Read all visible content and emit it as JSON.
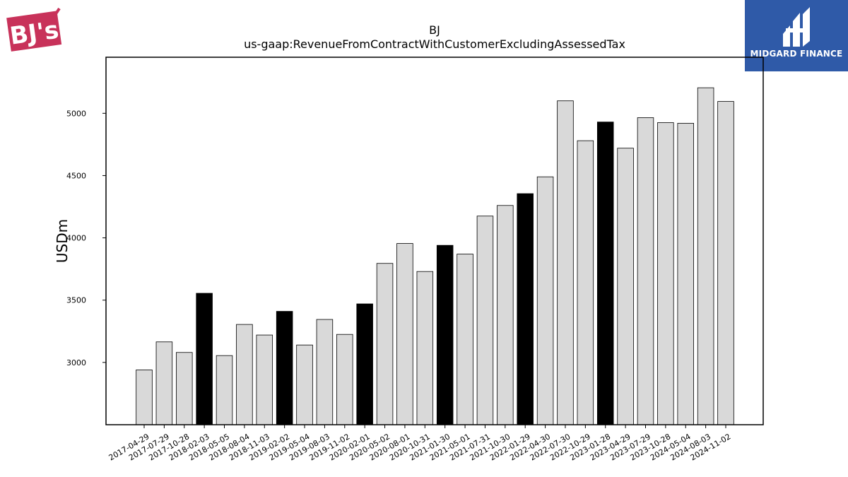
{
  "logos": {
    "left": {
      "text": "BJ's",
      "color": "#c8325a"
    },
    "right": {
      "text": "MIDGARD FINANCE",
      "bg": "#2f5aa8"
    }
  },
  "chart_data": {
    "type": "bar",
    "title": "BJ",
    "subtitle": "us-gaap:RevenueFromContractWithCustomerExcludingAssessedTax",
    "xlabel": "",
    "ylabel": "USDm",
    "ylim": [
      2500,
      5450
    ],
    "yticks": [
      3000,
      3500,
      4000,
      4500,
      5000
    ],
    "grid": false,
    "categories": [
      "2017-04-29",
      "2017-07-29",
      "2017-10-28",
      "2018-02-03",
      "2018-05-05",
      "2018-08-04",
      "2018-11-03",
      "2019-02-02",
      "2019-05-04",
      "2019-08-03",
      "2019-11-02",
      "2020-02-01",
      "2020-05-02",
      "2020-08-01",
      "2020-10-31",
      "2021-01-30",
      "2021-05-01",
      "2021-07-31",
      "2021-10-30",
      "2022-01-29",
      "2022-04-30",
      "2022-07-30",
      "2022-10-29",
      "2023-01-28",
      "2023-04-29",
      "2023-07-29",
      "2023-10-28",
      "2024-05-04",
      "2024-08-03",
      "2024-11-02"
    ],
    "values": [
      2940,
      3165,
      3080,
      3555,
      3055,
      3305,
      3220,
      3410,
      3140,
      3345,
      3225,
      3470,
      3795,
      3955,
      3730,
      3940,
      3870,
      4175,
      4260,
      4355,
      4490,
      5100,
      4780,
      4930,
      4720,
      4965,
      4925,
      4920,
      5205,
      5095
    ],
    "highlight": [
      false,
      false,
      false,
      true,
      false,
      false,
      false,
      true,
      false,
      false,
      false,
      true,
      false,
      false,
      false,
      true,
      false,
      false,
      false,
      true,
      false,
      false,
      false,
      true,
      false,
      false,
      false,
      false,
      false,
      false
    ],
    "colors": {
      "bar": "#d9d9d9",
      "highlight": "#000000",
      "edge": "#000000"
    }
  }
}
